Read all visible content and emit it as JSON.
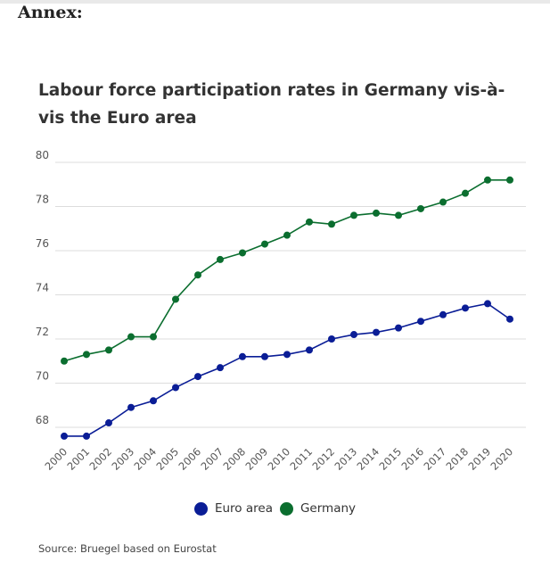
{
  "heading": "Annex:",
  "source": "Source: Bruegel based on Eurostat",
  "colors": {
    "euro_area": "#0a1d96",
    "germany": "#0b6e2f",
    "grid": "#dddddd",
    "tick_text": "#555555"
  },
  "chart_data": {
    "type": "line",
    "title": "Labour force participation rates in Germany vis-à-vis the Euro area",
    "xlabel": "",
    "ylabel": "",
    "x": [
      "2000",
      "2001",
      "2002",
      "2003",
      "2004",
      "2005",
      "2006",
      "2007",
      "2008",
      "2009",
      "2010",
      "2011",
      "2012",
      "2013",
      "2014",
      "2015",
      "2016",
      "2017",
      "2018",
      "2019",
      "2020"
    ],
    "ylim": [
      67,
      80
    ],
    "yticks": [
      68,
      70,
      72,
      74,
      76,
      78,
      80
    ],
    "grid": true,
    "legend_position": "bottom-center",
    "series": [
      {
        "name": "Euro area",
        "color": "#0a1d96",
        "values": [
          67.6,
          67.6,
          68.2,
          68.9,
          69.2,
          69.8,
          70.3,
          70.7,
          71.2,
          71.2,
          71.3,
          71.5,
          72.0,
          72.2,
          72.3,
          72.5,
          72.8,
          73.1,
          73.4,
          73.6,
          72.9
        ]
      },
      {
        "name": "Germany",
        "color": "#0b6e2f",
        "values": [
          71.0,
          71.3,
          71.5,
          72.1,
          72.1,
          73.8,
          74.9,
          75.6,
          75.9,
          76.3,
          76.7,
          77.3,
          77.2,
          77.6,
          77.7,
          77.6,
          77.9,
          78.2,
          78.6,
          79.2,
          79.2
        ]
      }
    ]
  }
}
